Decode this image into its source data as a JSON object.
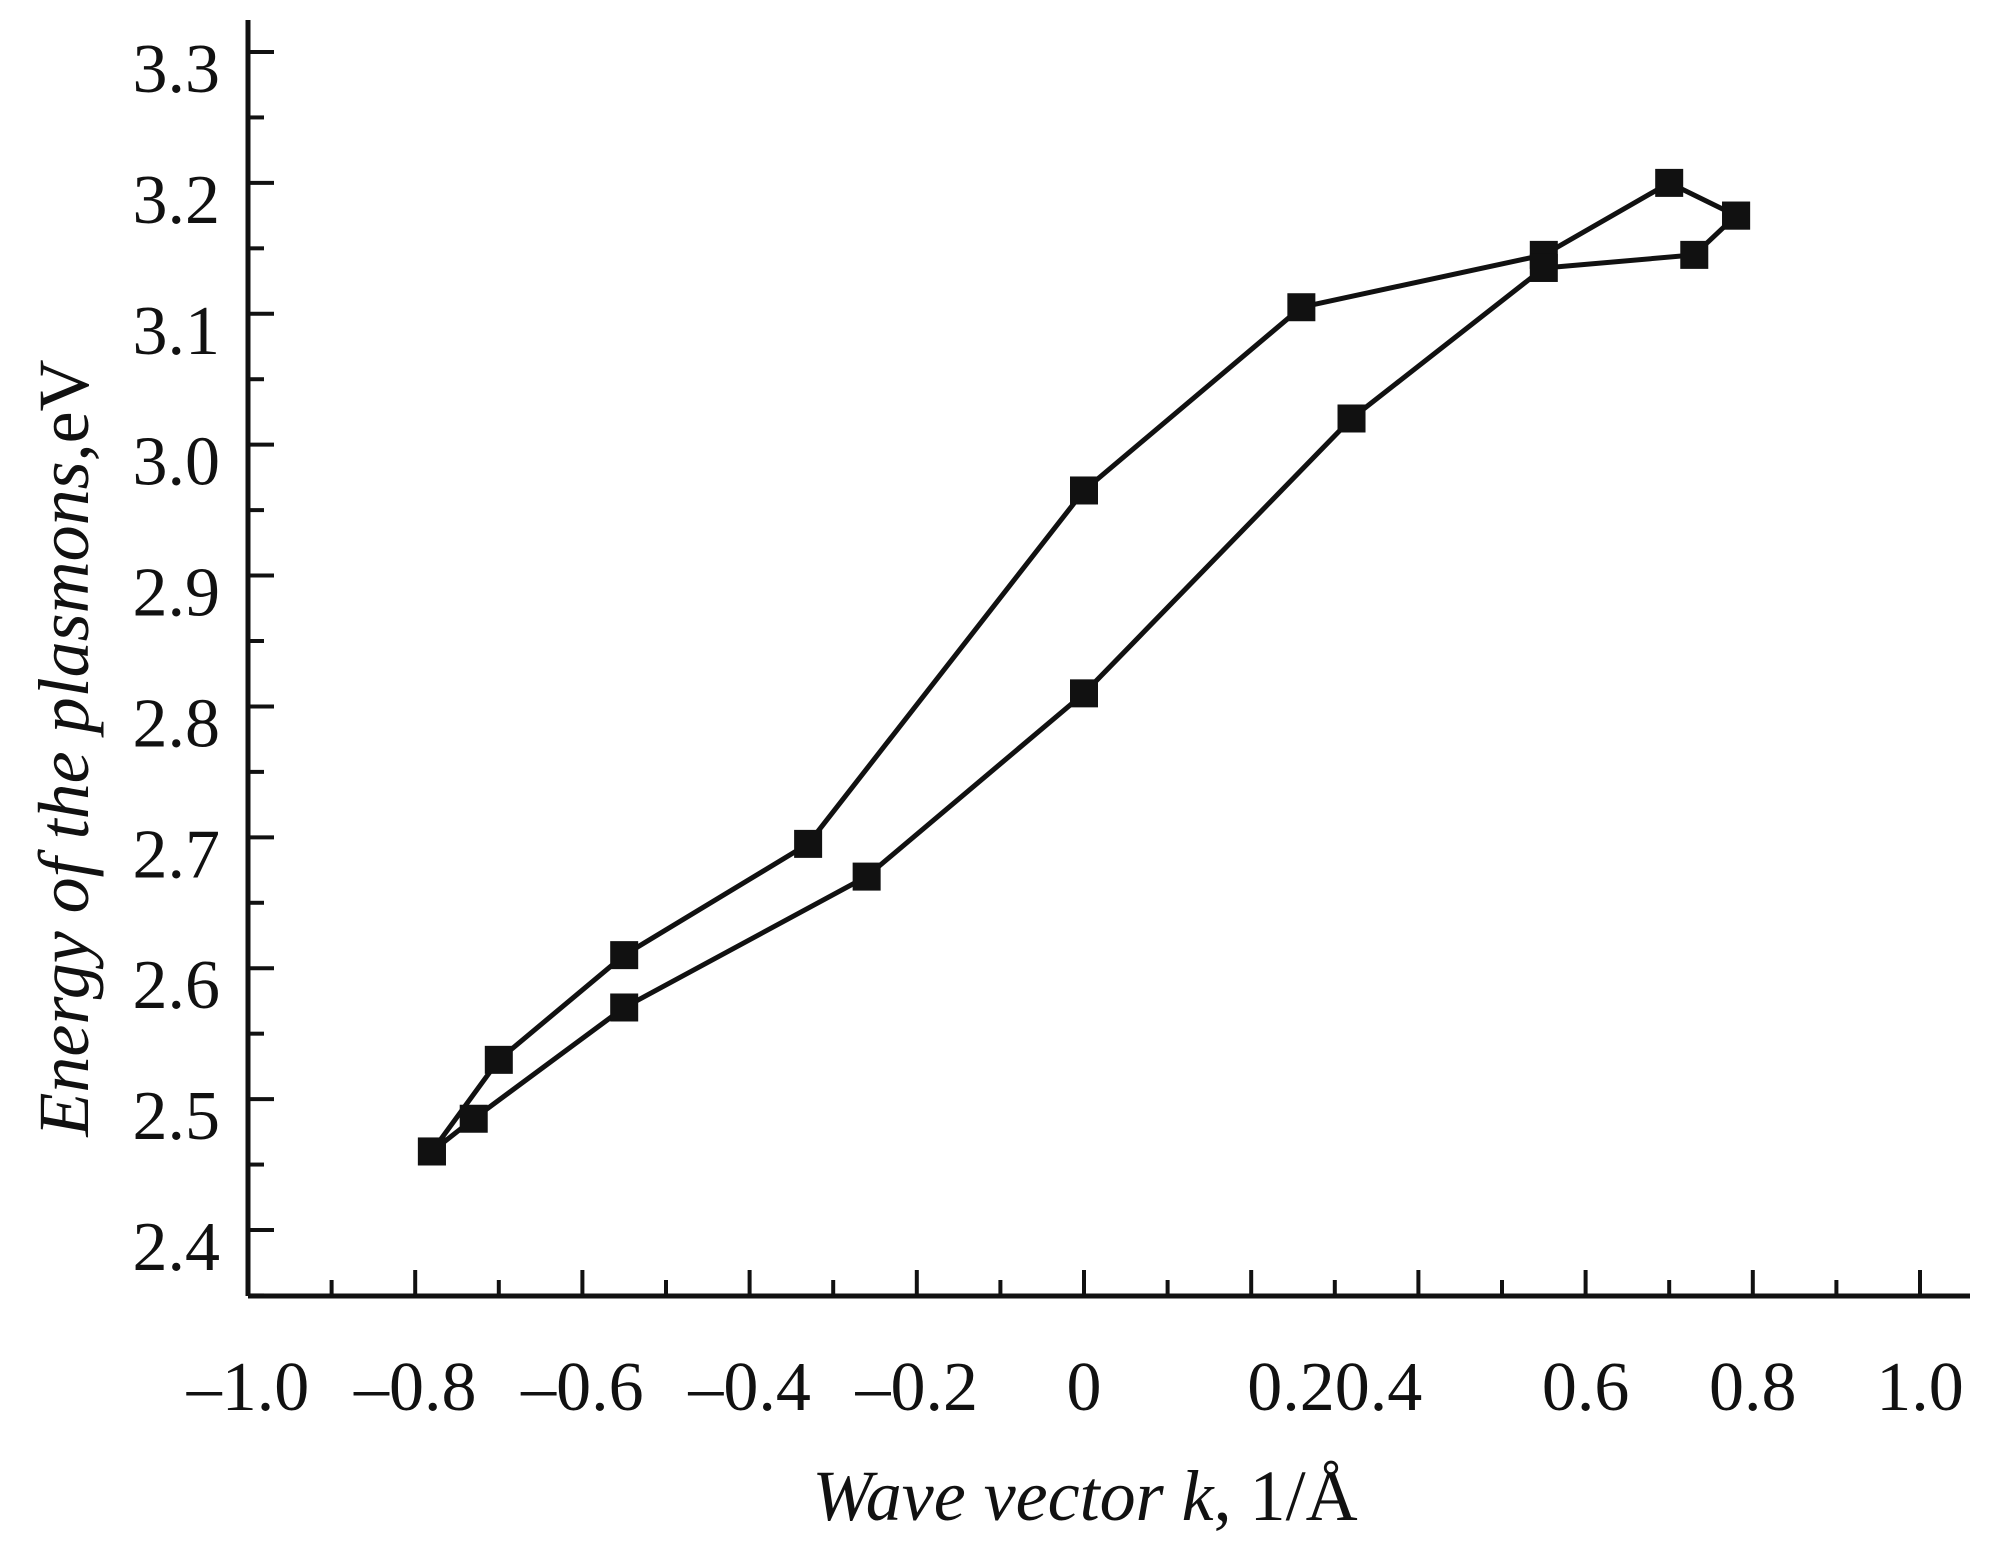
{
  "chart_data": {
    "type": "line",
    "title": "",
    "xlabel": {
      "italic": "Wave vector k",
      "unit": ", 1/Å"
    },
    "ylabel": {
      "italic": "Energy of the plasmons",
      "unit": ",eV"
    },
    "xlim": [
      -1.0,
      1.0
    ],
    "ylim": [
      2.35,
      3.32
    ],
    "xticks": [
      -1.0,
      -0.8,
      -0.6,
      -0.4,
      -0.2,
      0.0,
      0.2,
      0.4,
      0.6,
      0.8,
      1.0
    ],
    "xtick_labels": [
      {
        "value": -1.0,
        "text": "–1.0"
      },
      {
        "value": -0.8,
        "text": "–0.8"
      },
      {
        "value": -0.6,
        "text": "–0.6"
      },
      {
        "value": -0.4,
        "text": "–0.4"
      },
      {
        "value": -0.2,
        "text": "–0.2"
      },
      {
        "value": 0.0,
        "text": "0"
      },
      {
        "value": 0.3,
        "text": "0.20.4"
      },
      {
        "value": 0.6,
        "text": "0.6"
      },
      {
        "value": 0.8,
        "text": "0.8"
      },
      {
        "value": 1.0,
        "text": "1.0"
      }
    ],
    "yticks": [
      2.4,
      2.5,
      2.6,
      2.7,
      2.8,
      2.9,
      3.0,
      3.1,
      3.2,
      3.3
    ],
    "ytick_labels": [
      "2.4",
      "2.5",
      "2.6",
      "2.7",
      "2.8",
      "2.9",
      "3.0",
      "3.1",
      "3.2",
      "3.3"
    ],
    "grid": false,
    "legend": "none",
    "marker": "square",
    "line_color": "#111111",
    "series": [
      {
        "x": [
          -0.78,
          -0.7,
          -0.55,
          -0.33,
          0.0,
          0.26,
          0.55,
          0.7,
          0.78
        ],
        "y": [
          2.46,
          2.53,
          2.61,
          2.695,
          2.965,
          3.105,
          3.145,
          3.2,
          3.175
        ]
      },
      {
        "x": [
          -0.78,
          -0.73,
          -0.55,
          -0.26,
          0.0,
          0.32,
          0.55,
          0.73,
          0.78
        ],
        "y": [
          2.46,
          2.485,
          2.57,
          2.67,
          2.81,
          3.02,
          3.135,
          3.145,
          3.175
        ]
      }
    ]
  }
}
